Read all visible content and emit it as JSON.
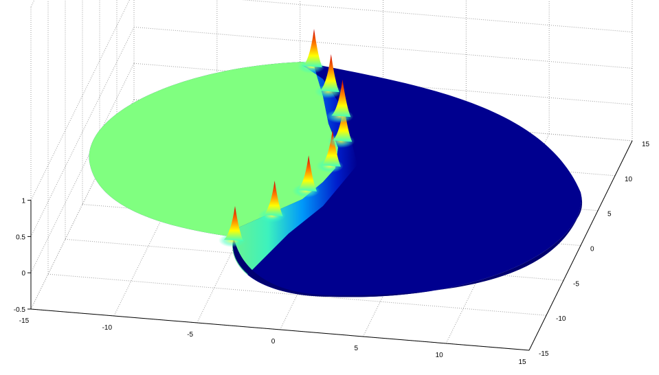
{
  "chart_data": {
    "type": "surface3d",
    "title": "",
    "xlabel": "",
    "ylabel": "",
    "zlabel": "",
    "colormap": "jet",
    "grid": true,
    "xlim": [
      -15,
      15
    ],
    "ylim": [
      -15,
      15
    ],
    "zlim": [
      -0.5,
      1
    ],
    "x_ticks": [
      -15,
      -10,
      -5,
      0,
      5,
      10,
      15
    ],
    "y_ticks": [
      -15,
      -10,
      -5,
      0,
      5,
      10,
      15
    ],
    "z_ticks": [
      -0.5,
      0,
      0.5,
      1
    ],
    "x_tick_labels": [
      "-15",
      "-10",
      "-5",
      "0",
      "5",
      "10",
      "15"
    ],
    "y_tick_labels": [
      "-15",
      "-10",
      "-5",
      "0",
      "5",
      "10",
      "15"
    ],
    "z_tick_labels": [
      "-0.5",
      "0",
      "0.5",
      "1"
    ],
    "domain_shape": "disk",
    "left_plateau_value": 0.38,
    "right_plateau_value": 0,
    "peak_value": 1,
    "num_peaks": 8,
    "colors": {
      "plateau_low": "#00008f",
      "plateau_mid": "#80ff80",
      "peak": "#d00000"
    }
  }
}
